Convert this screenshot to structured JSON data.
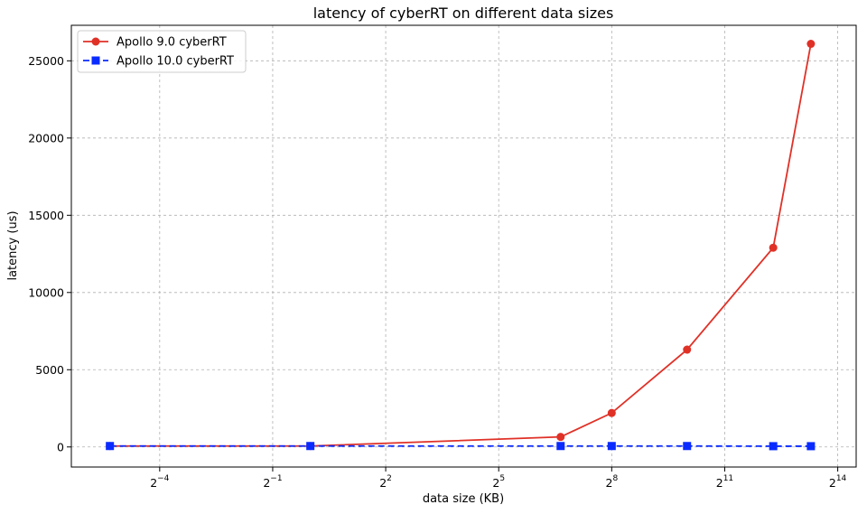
{
  "chart_data": {
    "type": "line",
    "title": "latency of cyberRT on different data sizes",
    "xlabel": "data size (KB)",
    "ylabel": "latency (us)",
    "xscale": "log2",
    "xlim": [
      0.0123,
      23000
    ],
    "ylim": [
      -1300,
      27300
    ],
    "grid": true,
    "legend_position": "top-left",
    "x_ticks": [
      {
        "base": "2",
        "exp": "−4",
        "value": 0.0625
      },
      {
        "base": "2",
        "exp": "−1",
        "value": 0.5
      },
      {
        "base": "2",
        "exp": "2",
        "value": 4
      },
      {
        "base": "2",
        "exp": "5",
        "value": 32
      },
      {
        "base": "2",
        "exp": "8",
        "value": 256
      },
      {
        "base": "2",
        "exp": "11",
        "value": 2048
      },
      {
        "base": "2",
        "exp": "14",
        "value": 16384
      }
    ],
    "y_ticks": [
      0,
      5000,
      10000,
      15000,
      20000,
      25000
    ],
    "x": [
      0.025,
      1,
      100,
      256,
      1024,
      5000,
      10000
    ],
    "series": [
      {
        "name": "Apollo 9.0 cyberRT",
        "values": [
          60,
          60,
          650,
          2200,
          6300,
          12900,
          26100
        ],
        "color": "#e03127",
        "marker": "circle",
        "linestyle": "solid"
      },
      {
        "name": "Apollo 10.0 cyberRT",
        "values": [
          60,
          60,
          60,
          60,
          60,
          50,
          50
        ],
        "color": "#0a2bff",
        "marker": "square",
        "linestyle": "dashed"
      }
    ]
  }
}
